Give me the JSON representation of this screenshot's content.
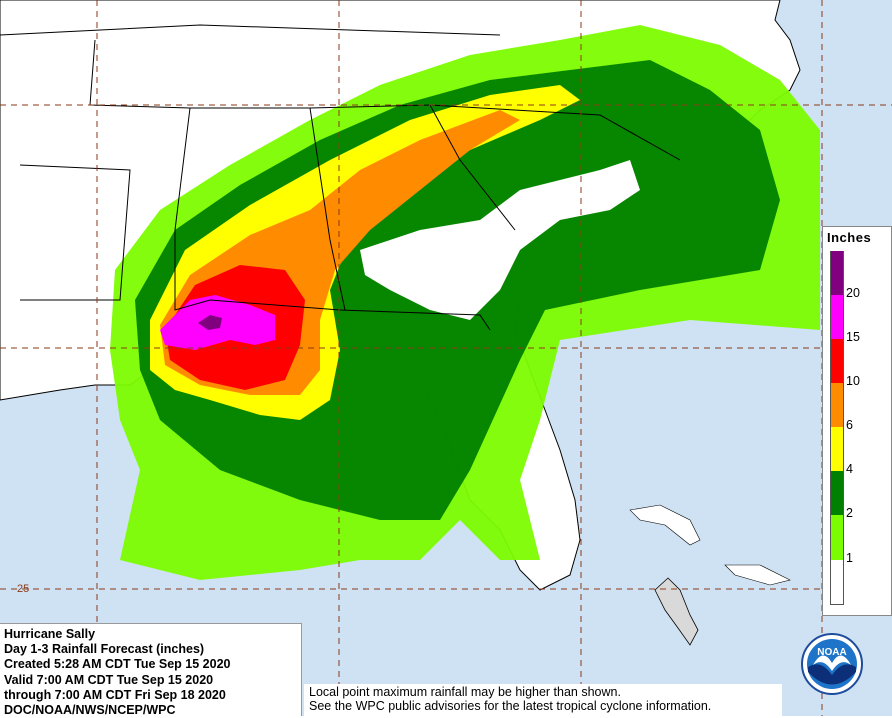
{
  "title_block": {
    "line1": "Hurricane Sally",
    "line2": "Day 1-3 Rainfall Forecast (inches)",
    "line3": "Created 5:28 AM CDT Tue Sep 15 2020",
    "line4": "Valid 7:00 AM CDT Tue Sep 15 2020",
    "line5": "through 7:00 AM CDT Fri Sep 18 2020",
    "line6": "DOC/NOAA/NWS/NCEP/WPC"
  },
  "disclaimer": {
    "line1": "Local point maximum rainfall may be higher than shown.",
    "line2": "See the WPC public advisories for the latest tropical cyclone information."
  },
  "legend": {
    "title": "Inches",
    "bins": [
      {
        "label": "",
        "color": "#800080"
      },
      {
        "label": "20",
        "color": "#800080"
      },
      {
        "label": "15",
        "color": "#ff00ff"
      },
      {
        "label": "10",
        "color": "#ff0000"
      },
      {
        "label": "6",
        "color": "#ff8c00"
      },
      {
        "label": "4",
        "color": "#ffff00"
      },
      {
        "label": "2",
        "color": "#008000"
      },
      {
        "label": "1",
        "color": "#7cfc00"
      },
      {
        "label": "",
        "color": "#ffffff"
      }
    ]
  },
  "grid_label": "25",
  "logo": {
    "text": "NOAA"
  },
  "colors": {
    "water": "#cfe2f3",
    "land": "#ffffff",
    "outside_forecast_land": "#d9d9d9",
    "grid_line": "#8b3a1a",
    "boundary": "#000000"
  }
}
